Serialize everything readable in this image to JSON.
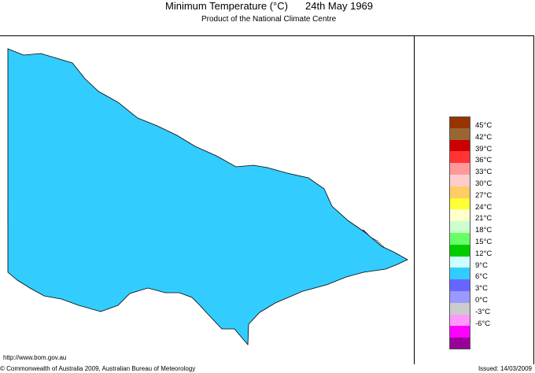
{
  "header": {
    "title": "Minimum Temperature (°C)",
    "date": "24th May 1969",
    "subtitle": "Product of the National Climate Centre"
  },
  "legend": {
    "items": [
      {
        "label": "45°C",
        "color": "#993300"
      },
      {
        "label": "42°C",
        "color": "#996633"
      },
      {
        "label": "39°C",
        "color": "#cc0000"
      },
      {
        "label": "36°C",
        "color": "#ff3333"
      },
      {
        "label": "33°C",
        "color": "#ff9999"
      },
      {
        "label": "30°C",
        "color": "#ffcccc"
      },
      {
        "label": "27°C",
        "color": "#ffcc66"
      },
      {
        "label": "24°C",
        "color": "#ffff33"
      },
      {
        "label": "21°C",
        "color": "#ffffcc"
      },
      {
        "label": "18°C",
        "color": "#ccffcc"
      },
      {
        "label": "15°C",
        "color": "#66ff66"
      },
      {
        "label": "12°C",
        "color": "#00cc00"
      },
      {
        "label": "9°C",
        "color": "#ccffff"
      },
      {
        "label": "6°C",
        "color": "#33ccff"
      },
      {
        "label": "3°C",
        "color": "#6666ff"
      },
      {
        "label": "0°C",
        "color": "#9999ff"
      },
      {
        "label": "-3°C",
        "color": "#cccccc"
      },
      {
        "label": "-6°C",
        "color": "#ff99ff"
      },
      {
        "label": "",
        "color": "#ff00ff"
      },
      {
        "label": "",
        "color": "#990099"
      }
    ]
  },
  "map_colors": {
    "cyan": "#33ccff",
    "blue": "#6666ff",
    "grey": "#cccccc",
    "pink": "#ff99ff",
    "magenta": "#ff00ff"
  },
  "footer": {
    "url": "http://www.bom.gov.au",
    "copyright": "© Commonwealth of Australia 2009, Australian Bureau of Meteorology",
    "issued": "Issued: 14/03/2009"
  }
}
